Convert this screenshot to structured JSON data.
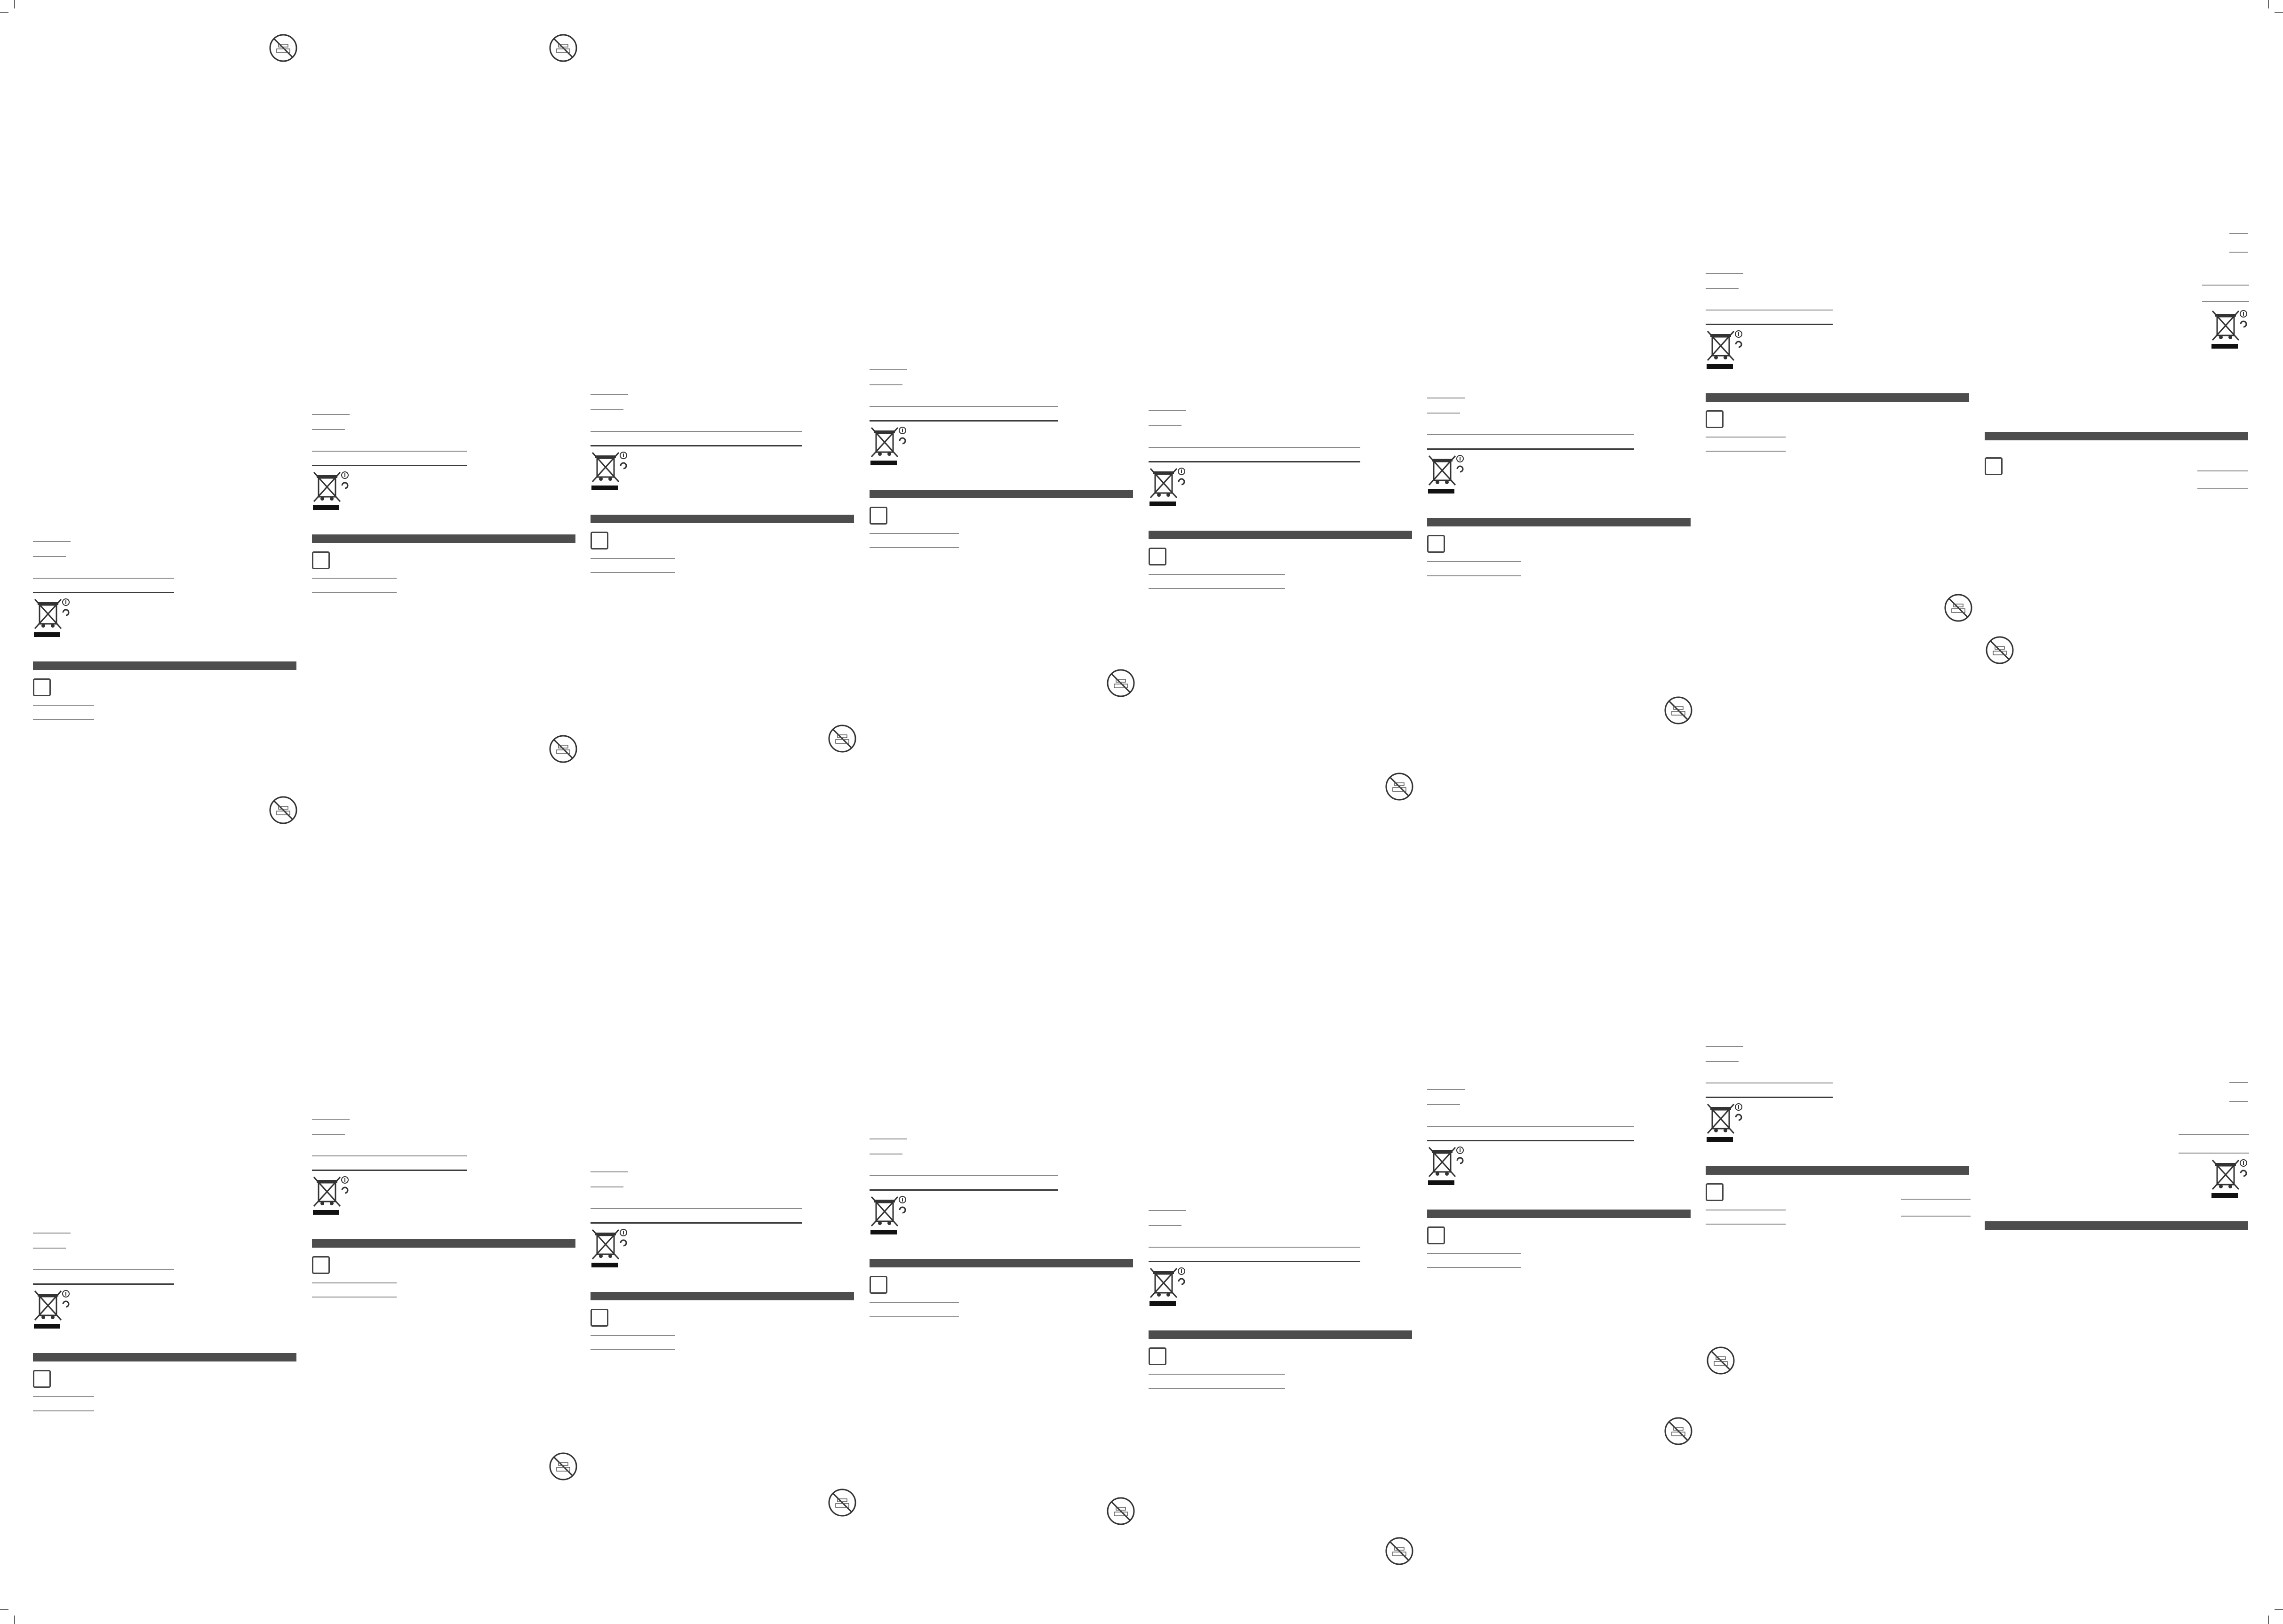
{
  "sheet": {
    "title": "",
    "columns": 8,
    "rows": 2
  },
  "icons": {
    "weee": "crossed-out-wheelie-bin-icon",
    "no_symbol": "prohibition-circle-icon",
    "box": "checkbox-square-icon"
  },
  "colors": {
    "bar": "#4d4d4d",
    "rule": "#8a8a8a",
    "icon": "#333333"
  }
}
